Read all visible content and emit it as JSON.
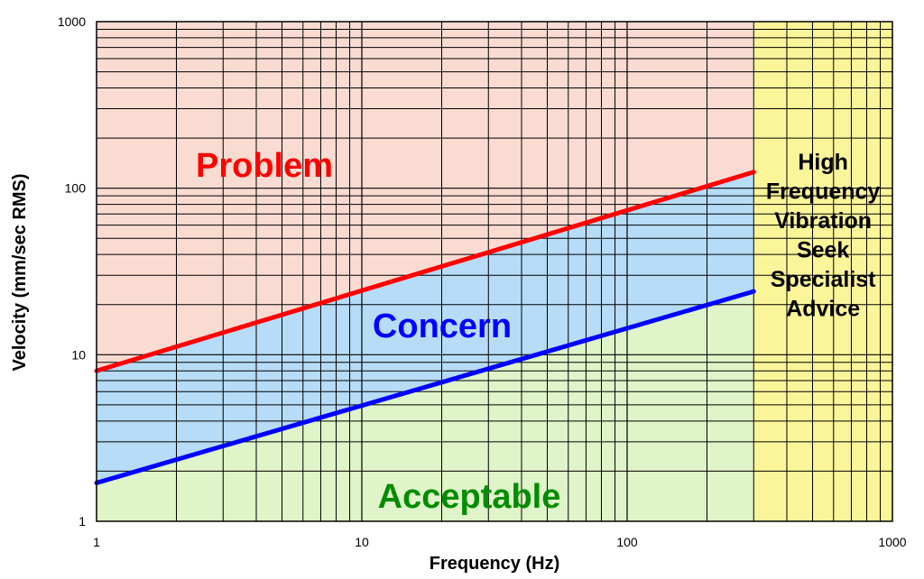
{
  "chart_data": {
    "type": "line",
    "title": "",
    "xlabel": "Frequency (Hz)",
    "ylabel": "Velocity (mm/sec RMS)",
    "x_scale": "log",
    "y_scale": "log",
    "xlim": [
      1,
      1000
    ],
    "ylim": [
      1,
      1000
    ],
    "grid": true,
    "x_ticks": [
      "1",
      "10",
      "100",
      "1000"
    ],
    "y_ticks": [
      "1",
      "10",
      "100",
      "1000"
    ],
    "boundaries": [
      {
        "x": [
          1,
          300
        ],
        "y": [
          8,
          125
        ],
        "color": "#ff0000"
      },
      {
        "x": [
          1,
          300
        ],
        "y": [
          1.7,
          24
        ],
        "color": "#0000ff"
      }
    ],
    "high_frequency_start": 300,
    "regions": {
      "problem": {
        "label": "Problem",
        "color": "#ff0000",
        "fill": "#fadbd2"
      },
      "concern": {
        "label": "Concern",
        "color": "#0000ff",
        "fill": "#b6dcf7"
      },
      "acceptable": {
        "label": "Acceptable",
        "color": "#008c00",
        "fill": "#dff4c8"
      },
      "high_frequency": {
        "lines": [
          "High",
          "Frequency",
          "Vibration",
          "Seek",
          "Specialist",
          "Advice"
        ],
        "color": "#000000",
        "fill": "#fbf59a"
      }
    }
  }
}
